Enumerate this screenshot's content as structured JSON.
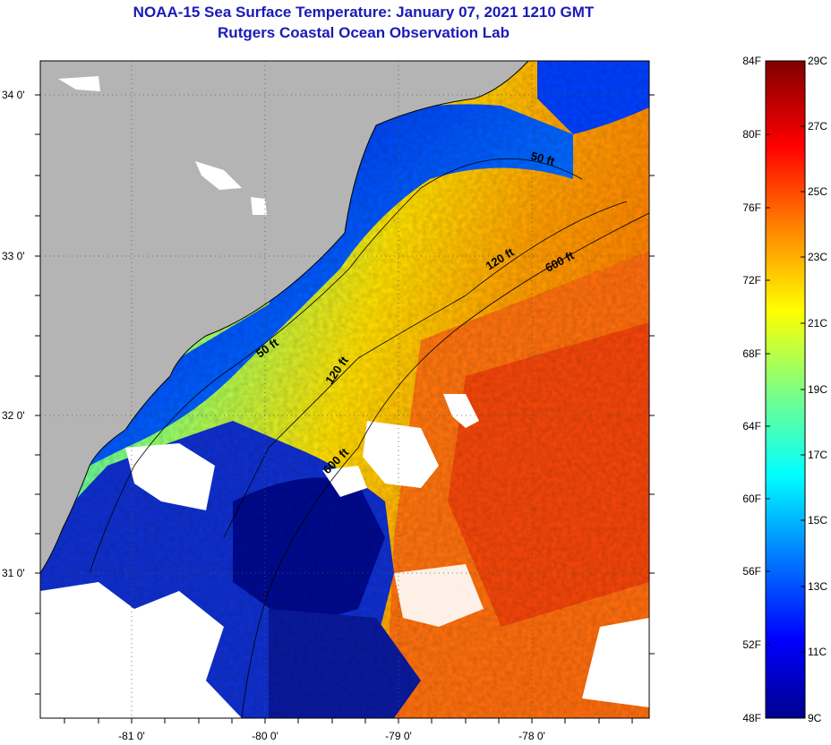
{
  "title": {
    "line1": "NOAA-15 Sea Surface Temperature:  January 07, 2021 1210 GMT",
    "line2": "Rutgers Coastal Ocean Observation Lab"
  },
  "map": {
    "lat_labels": [
      "34 0'",
      "33 0'",
      "32 0'",
      "31 0'"
    ],
    "lon_labels": [
      "-81 0'",
      "-80 0'",
      "-79 0'",
      "-78 0'"
    ],
    "contour_labels": [
      "50 ft",
      "50 ft",
      "120 ft",
      "120 ft",
      "600 ft",
      "600 ft"
    ],
    "colors": {
      "land": "#b4b4b4",
      "cloud": "#ffffff"
    }
  },
  "colorbar": {
    "fahrenheit_labels": [
      "84F",
      "80F",
      "76F",
      "72F",
      "68F",
      "64F",
      "60F",
      "56F",
      "52F",
      "48F"
    ],
    "celsius_labels": [
      "29C",
      "27C",
      "25C",
      "23C",
      "21C",
      "19C",
      "17C",
      "15C",
      "13C",
      "11C",
      "9C"
    ],
    "range_c": [
      9,
      29
    ],
    "colormap": [
      "#00008f",
      "#0000ff",
      "#0080ff",
      "#00ffff",
      "#80ff80",
      "#ffff00",
      "#ff8000",
      "#ff0000",
      "#800000"
    ]
  }
}
